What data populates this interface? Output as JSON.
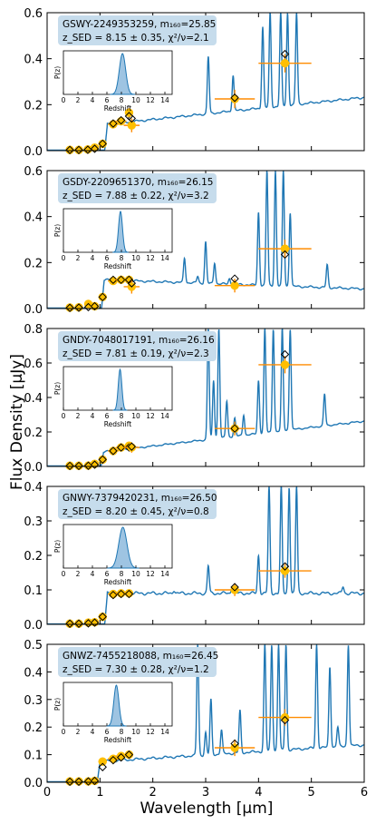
{
  "figure": {
    "ylabel": "Flux Density [μJy]",
    "xlabel": "Wavelength [μm]",
    "xticks": [
      "0",
      "1",
      "2",
      "3",
      "4",
      "5",
      "6"
    ]
  },
  "colors": {
    "sed": "#1f77b4",
    "photometry": "#ffbf00",
    "errorbar": "#ff8c00",
    "model": "#555555",
    "labelbox": "#c6dcec",
    "pdf_fill": "#9ec4e2"
  },
  "chart_data": [
    {
      "type": "line",
      "label_name": "GSWY-2249353259, m₁₆₀=25.85",
      "label_fit": "z_SED = 8.15 ± 0.35, χ²/ν=2.1",
      "zsed": 8.15,
      "zerr": 0.35,
      "chi2": 2.1,
      "m160": 25.85,
      "ylim": [
        0,
        0.6
      ],
      "xlim": [
        0,
        6
      ],
      "yticks": [
        "0.0",
        "0.2",
        "0.4",
        "0.6"
      ],
      "continuum": {
        "break": 1.14,
        "pre": 0.002,
        "post": 0.115,
        "slope": 0.024
      },
      "lines": [
        [
          3.05,
          0.41
        ],
        [
          3.52,
          0.33
        ],
        [
          4.08,
          0.54
        ],
        [
          4.22,
          0.6
        ],
        [
          4.42,
          0.6
        ],
        [
          4.55,
          0.6
        ],
        [
          4.72,
          0.6
        ],
        [
          5.5,
          0.17
        ]
      ],
      "photometry": [
        {
          "x": 0.43,
          "y": 0.003,
          "m": 0.003,
          "xerr": 0.05,
          "yerr": 0.003
        },
        {
          "x": 0.6,
          "y": 0.003,
          "m": 0.003,
          "xerr": 0.06,
          "yerr": 0.003
        },
        {
          "x": 0.77,
          "y": 0.005,
          "m": 0.004,
          "xerr": 0.06,
          "yerr": 0.003
        },
        {
          "x": 0.9,
          "y": 0.013,
          "m": 0.008,
          "xerr": 0.05,
          "yerr": 0.005
        },
        {
          "x": 1.05,
          "y": 0.03,
          "m": 0.03,
          "xerr": 0.05,
          "yerr": 0.01
        },
        {
          "x": 1.25,
          "y": 0.115,
          "m": 0.118,
          "xerr": 0.1,
          "yerr": 0.012
        },
        {
          "x": 1.4,
          "y": 0.128,
          "m": 0.132,
          "xerr": 0.1,
          "yerr": 0.012
        },
        {
          "x": 1.6,
          "y": 0.11,
          "m": 0.14,
          "xerr": 0.15,
          "yerr": 0.03
        },
        {
          "x": 1.55,
          "y": 0.165,
          "m": 0.15,
          "xerr": 0.04,
          "yerr": 0.02
        },
        {
          "x": 3.55,
          "y": 0.225,
          "m": 0.23,
          "xerr": 0.38,
          "yerr": 0.04
        },
        {
          "x": 4.5,
          "y": 0.38,
          "m": 0.42,
          "xerr": 0.5,
          "yerr": 0.04
        }
      ]
    },
    {
      "type": "line",
      "label_name": "GSDY-2209651370, m₁₆₀=26.15",
      "label_fit": "z_SED = 7.88 ± 0.22, χ²/ν=3.2",
      "zsed": 7.88,
      "zerr": 0.22,
      "chi2": 3.2,
      "m160": 26.15,
      "ylim": [
        0,
        0.6
      ],
      "xlim": [
        0,
        6
      ],
      "yticks": [
        "0.0",
        "0.2",
        "0.4",
        "0.6"
      ],
      "continuum": {
        "break": 1.08,
        "pre": 0.002,
        "post": 0.125,
        "slope": -0.008
      },
      "lines": [
        [
          2.6,
          0.22
        ],
        [
          2.85,
          0.14
        ],
        [
          3.0,
          0.29
        ],
        [
          3.17,
          0.2
        ],
        [
          3.45,
          0.13
        ],
        [
          4.0,
          0.42
        ],
        [
          4.16,
          0.6
        ],
        [
          4.32,
          0.6
        ],
        [
          4.47,
          0.6
        ],
        [
          4.6,
          0.42
        ],
        [
          5.3,
          0.19
        ]
      ],
      "photometry": [
        {
          "x": 0.43,
          "y": 0.004,
          "m": 0.003,
          "xerr": 0.05,
          "yerr": 0.004
        },
        {
          "x": 0.6,
          "y": 0.005,
          "m": 0.004,
          "xerr": 0.06,
          "yerr": 0.004
        },
        {
          "x": 0.78,
          "y": 0.02,
          "m": 0.006,
          "xerr": 0.06,
          "yerr": 0.006
        },
        {
          "x": 0.9,
          "y": 0.01,
          "m": 0.01,
          "xerr": 0.05,
          "yerr": 0.006
        },
        {
          "x": 1.05,
          "y": 0.05,
          "m": 0.05,
          "xerr": 0.05,
          "yerr": 0.01
        },
        {
          "x": 1.25,
          "y": 0.12,
          "m": 0.125,
          "xerr": 0.1,
          "yerr": 0.012
        },
        {
          "x": 1.4,
          "y": 0.125,
          "m": 0.125,
          "xerr": 0.1,
          "yerr": 0.012
        },
        {
          "x": 1.55,
          "y": 0.125,
          "m": 0.125,
          "xerr": 0.05,
          "yerr": 0.012
        },
        {
          "x": 1.6,
          "y": 0.095,
          "m": 0.11,
          "xerr": 0.15,
          "yerr": 0.03
        },
        {
          "x": 3.55,
          "y": 0.1,
          "m": 0.13,
          "xerr": 0.38,
          "yerr": 0.03
        },
        {
          "x": 4.5,
          "y": 0.26,
          "m": 0.235,
          "xerr": 0.5,
          "yerr": 0.04
        }
      ]
    },
    {
      "type": "line",
      "label_name": "GNDY-7048017191, m₁₆₀=26.16",
      "label_fit": "z_SED = 7.81 ± 0.19, χ²/ν=2.3",
      "zsed": 7.81,
      "zerr": 0.19,
      "chi2": 2.3,
      "m160": 26.16,
      "ylim": [
        0,
        0.8
      ],
      "xlim": [
        0,
        6
      ],
      "yticks": [
        "0.0",
        "0.2",
        "0.4",
        "0.6",
        "0.8"
      ],
      "continuum": {
        "break": 1.07,
        "pre": 0.003,
        "post": 0.085,
        "slope": 0.036
      },
      "lines": [
        [
          3.05,
          0.8
        ],
        [
          3.15,
          0.5
        ],
        [
          3.25,
          0.8
        ],
        [
          3.4,
          0.38
        ],
        [
          3.55,
          0.28
        ],
        [
          3.72,
          0.3
        ],
        [
          4.0,
          0.5
        ],
        [
          4.12,
          0.8
        ],
        [
          4.28,
          0.8
        ],
        [
          4.45,
          0.8
        ],
        [
          4.6,
          0.8
        ],
        [
          5.25,
          0.42
        ],
        [
          5.7,
          0.25
        ]
      ],
      "photometry": [
        {
          "x": 0.43,
          "y": 0.004,
          "m": 0.003,
          "xerr": 0.05,
          "yerr": 0.004
        },
        {
          "x": 0.6,
          "y": 0.004,
          "m": 0.003,
          "xerr": 0.06,
          "yerr": 0.004
        },
        {
          "x": 0.78,
          "y": 0.005,
          "m": 0.004,
          "xerr": 0.06,
          "yerr": 0.004
        },
        {
          "x": 0.9,
          "y": 0.015,
          "m": 0.01,
          "xerr": 0.05,
          "yerr": 0.006
        },
        {
          "x": 1.05,
          "y": 0.04,
          "m": 0.04,
          "xerr": 0.05,
          "yerr": 0.01
        },
        {
          "x": 1.25,
          "y": 0.09,
          "m": 0.09,
          "xerr": 0.1,
          "yerr": 0.012
        },
        {
          "x": 1.4,
          "y": 0.11,
          "m": 0.11,
          "xerr": 0.1,
          "yerr": 0.012
        },
        {
          "x": 1.55,
          "y": 0.12,
          "m": 0.11,
          "xerr": 0.05,
          "yerr": 0.012
        },
        {
          "x": 1.6,
          "y": 0.11,
          "m": 0.115,
          "xerr": 0.15,
          "yerr": 0.03
        },
        {
          "x": 3.55,
          "y": 0.22,
          "m": 0.22,
          "xerr": 0.38,
          "yerr": 0.04
        },
        {
          "x": 4.5,
          "y": 0.59,
          "m": 0.65,
          "xerr": 0.5,
          "yerr": 0.05
        }
      ]
    },
    {
      "type": "line",
      "label_name": "GNWY-7379420231, m₁₆₀=26.50",
      "label_fit": "z_SED = 8.20 ± 0.45, χ²/ν=0.8",
      "zsed": 8.2,
      "zerr": 0.45,
      "chi2": 0.8,
      "m160": 26.5,
      "ylim": [
        0,
        0.4
      ],
      "xlim": [
        0,
        6
      ],
      "yticks": [
        "0.0",
        "0.1",
        "0.2",
        "0.3",
        "0.4"
      ],
      "continuum": {
        "break": 1.14,
        "pre": 0.001,
        "post": 0.09,
        "slope": 0.0
      },
      "lines": [
        [
          2.4,
          0.1
        ],
        [
          3.05,
          0.17
        ],
        [
          3.5,
          0.11
        ],
        [
          4.0,
          0.2
        ],
        [
          4.2,
          0.4
        ],
        [
          4.43,
          0.4
        ],
        [
          4.58,
          0.4
        ],
        [
          4.72,
          0.4
        ],
        [
          5.6,
          0.11
        ]
      ],
      "photometry": [
        {
          "x": 0.43,
          "y": 0.002,
          "m": 0.002,
          "xerr": 0.05,
          "yerr": 0.002
        },
        {
          "x": 0.6,
          "y": 0.002,
          "m": 0.002,
          "xerr": 0.06,
          "yerr": 0.002
        },
        {
          "x": 0.78,
          "y": 0.005,
          "m": 0.003,
          "xerr": 0.06,
          "yerr": 0.002
        },
        {
          "x": 0.9,
          "y": 0.006,
          "m": 0.005,
          "xerr": 0.05,
          "yerr": 0.003
        },
        {
          "x": 1.05,
          "y": 0.022,
          "m": 0.022,
          "xerr": 0.05,
          "yerr": 0.006
        },
        {
          "x": 1.25,
          "y": 0.088,
          "m": 0.085,
          "xerr": 0.1,
          "yerr": 0.008
        },
        {
          "x": 1.4,
          "y": 0.09,
          "m": 0.088,
          "xerr": 0.1,
          "yerr": 0.008
        },
        {
          "x": 1.55,
          "y": 0.09,
          "m": 0.088,
          "xerr": 0.08,
          "yerr": 0.008
        },
        {
          "x": 3.55,
          "y": 0.1,
          "m": 0.108,
          "xerr": 0.38,
          "yerr": 0.018
        },
        {
          "x": 4.5,
          "y": 0.155,
          "m": 0.168,
          "xerr": 0.5,
          "yerr": 0.02
        }
      ]
    },
    {
      "type": "line",
      "label_name": "GNWZ-7455218088, m₁₆₀=26.45",
      "label_fit": "z_SED = 7.30 ± 0.28, χ²/ν=1.2",
      "zsed": 7.3,
      "zerr": 0.28,
      "chi2": 1.2,
      "m160": 26.45,
      "ylim": [
        0,
        0.5
      ],
      "xlim": [
        0,
        6
      ],
      "yticks": [
        "0.0",
        "0.1",
        "0.2",
        "0.3",
        "0.4",
        "0.5"
      ],
      "continuum": {
        "break": 1.0,
        "pre": 0.002,
        "post": 0.075,
        "slope": 0.012
      },
      "lines": [
        [
          2.85,
          0.5
        ],
        [
          3.0,
          0.18
        ],
        [
          3.1,
          0.3
        ],
        [
          3.3,
          0.19
        ],
        [
          3.65,
          0.26
        ],
        [
          4.12,
          0.5
        ],
        [
          4.25,
          0.5
        ],
        [
          4.38,
          0.5
        ],
        [
          4.52,
          0.5
        ],
        [
          5.1,
          0.5
        ],
        [
          5.35,
          0.42
        ],
        [
          5.5,
          0.2
        ],
        [
          5.7,
          0.5
        ]
      ],
      "photometry": [
        {
          "x": 0.43,
          "y": 0.003,
          "m": 0.002,
          "xerr": 0.05,
          "yerr": 0.003
        },
        {
          "x": 0.6,
          "y": 0.003,
          "m": 0.002,
          "xerr": 0.06,
          "yerr": 0.003
        },
        {
          "x": 0.78,
          "y": 0.003,
          "m": 0.003,
          "xerr": 0.06,
          "yerr": 0.003
        },
        {
          "x": 0.9,
          "y": 0.005,
          "m": 0.005,
          "xerr": 0.05,
          "yerr": 0.003
        },
        {
          "x": 1.05,
          "y": 0.075,
          "m": 0.055,
          "xerr": 0.08,
          "yerr": 0.012
        },
        {
          "x": 1.25,
          "y": 0.085,
          "m": 0.08,
          "xerr": 0.1,
          "yerr": 0.012
        },
        {
          "x": 1.4,
          "y": 0.095,
          "m": 0.09,
          "xerr": 0.1,
          "yerr": 0.012
        },
        {
          "x": 1.55,
          "y": 0.1,
          "m": 0.1,
          "xerr": 0.05,
          "yerr": 0.012
        },
        {
          "x": 3.55,
          "y": 0.125,
          "m": 0.14,
          "xerr": 0.38,
          "yerr": 0.03
        },
        {
          "x": 4.5,
          "y": 0.235,
          "m": 0.225,
          "xerr": 0.5,
          "yerr": 0.03
        }
      ]
    }
  ],
  "inset": {
    "ylabel": "P(z)",
    "xlabel": "Redshift",
    "xticks": [
      "0",
      "2",
      "4",
      "6",
      "8",
      "10",
      "12",
      "14"
    ]
  }
}
